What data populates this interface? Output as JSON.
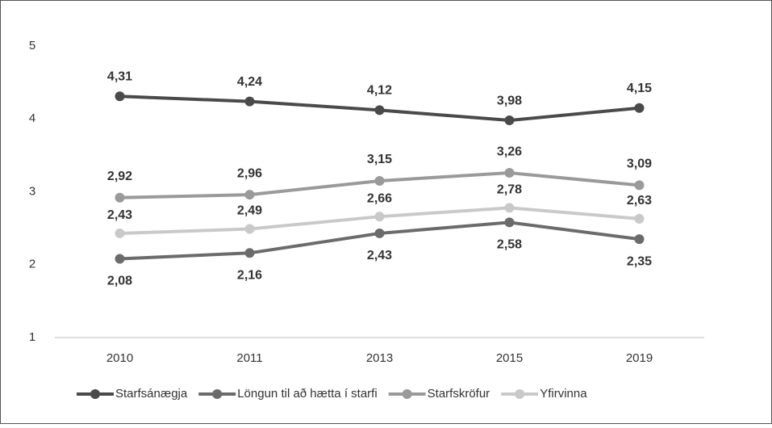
{
  "chart_data": {
    "type": "line",
    "categories": [
      "2010",
      "2011",
      "2013",
      "2015",
      "2019"
    ],
    "series": [
      {
        "name": "Starfsánægja",
        "color": "#4a4a4a",
        "values": [
          4.31,
          4.24,
          4.12,
          3.98,
          4.15
        ],
        "value_labels": [
          "4,31",
          "4,24",
          "4,12",
          "3,98",
          "4,15"
        ]
      },
      {
        "name": "Löngun til að hætta í starfi",
        "color": "#6b6b6b",
        "values": [
          2.08,
          2.16,
          2.43,
          2.58,
          2.35
        ],
        "value_labels": [
          "2,08",
          "2,16",
          "2,43",
          "2,58",
          "2,35"
        ]
      },
      {
        "name": "Starfskröfur",
        "color": "#9a9a9a",
        "values": [
          2.92,
          2.96,
          3.15,
          3.26,
          3.09
        ],
        "value_labels": [
          "2,92",
          "2,96",
          "3,15",
          "3,26",
          "3,09"
        ]
      },
      {
        "name": "Yfirvinna",
        "color": "#c9c9c9",
        "values": [
          2.43,
          2.49,
          2.66,
          2.78,
          2.63
        ],
        "value_labels": [
          "2,43",
          "2,49",
          "2,66",
          "2,78",
          "2,63"
        ]
      }
    ],
    "ylim": [
      1,
      5
    ],
    "yticks": [
      1,
      2,
      3,
      4,
      5
    ],
    "grid": false,
    "legend": "bottom"
  }
}
